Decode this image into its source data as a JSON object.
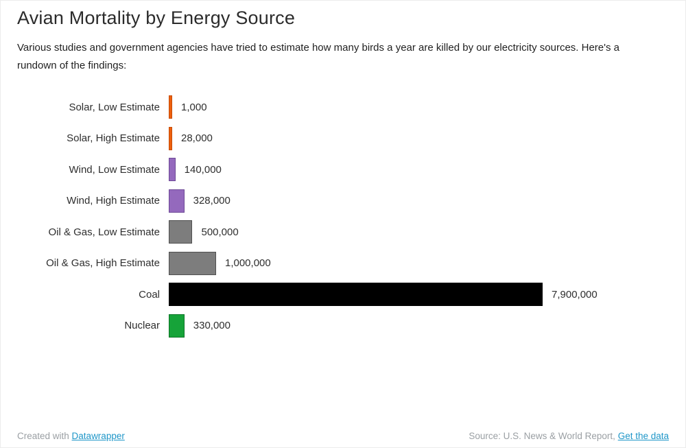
{
  "header": {
    "title": "Avian Mortality by Energy Source",
    "description": "Various studies and government agencies have tried to estimate how many birds a year are killed by our electricity sources. Here's a rundown of the findings:"
  },
  "chart_data": {
    "type": "bar",
    "orientation": "horizontal",
    "title": "Avian Mortality by Energy Source",
    "categories": [
      "Solar, Low Estimate",
      "Solar, High Estimate",
      "Wind, Low Estimate",
      "Wind, High Estimate",
      "Oil & Gas, Low Estimate",
      "Oil & Gas, High Estimate",
      "Coal",
      "Nuclear"
    ],
    "values": [
      1000,
      28000,
      140000,
      328000,
      500000,
      1000000,
      7900000,
      330000
    ],
    "value_labels": [
      "1,000",
      "28,000",
      "140,000",
      "328,000",
      "500,000",
      "1,000,000",
      "7,900,000",
      "330,000"
    ],
    "bar_colors": [
      {
        "fill": "#ed5f0d",
        "stroke": "#c74c08"
      },
      {
        "fill": "#ed5f0d",
        "stroke": "#c74c08"
      },
      {
        "fill": "#9469bd",
        "stroke": "#6d4896"
      },
      {
        "fill": "#9469bd",
        "stroke": "#6d4896"
      },
      {
        "fill": "#7d7d7d",
        "stroke": "#4f4f4f"
      },
      {
        "fill": "#7d7d7d",
        "stroke": "#4f4f4f"
      },
      {
        "fill": "#000000",
        "stroke": "#000000"
      },
      {
        "fill": "#16a339",
        "stroke": "#0b7526"
      }
    ],
    "xlim": [
      0,
      7900000
    ],
    "grid": false,
    "legend": "none",
    "value_labels_position": "right-of-bar",
    "category_labels_position": "left-of-bar"
  },
  "footer": {
    "created_with": "Created with ",
    "datawrapper_link_label": "Datawrapper",
    "source_text": "Source: U.S. News & World Report, ",
    "source_link_label": "Get the data"
  },
  "colors": {
    "link": "#1e96c8",
    "footer_text": "#9a9fa3",
    "title_text": "#2b2b2b"
  }
}
